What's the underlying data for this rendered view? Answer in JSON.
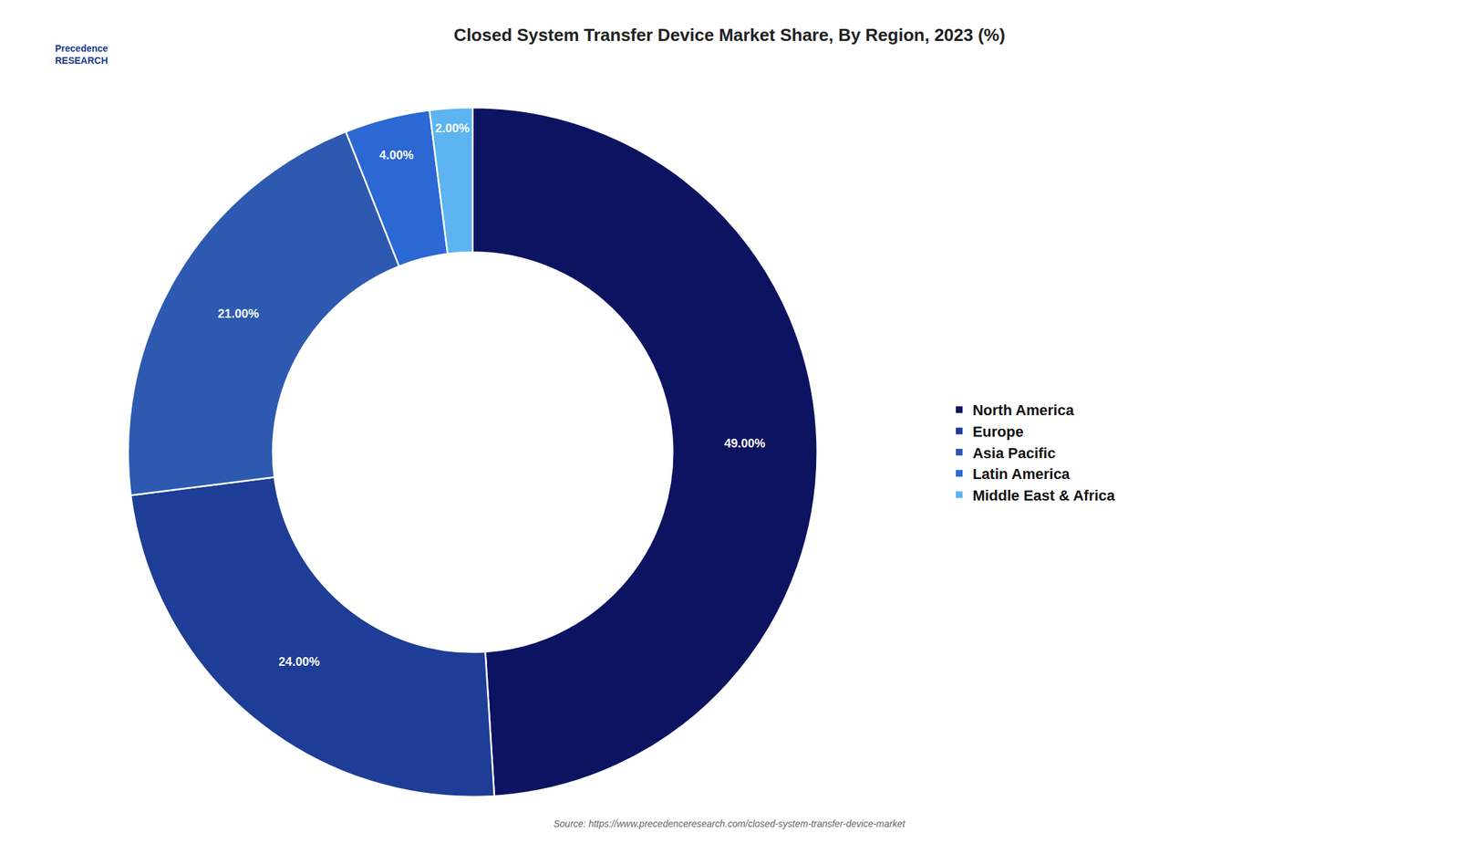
{
  "chart_data": {
    "type": "donut",
    "title": "Closed System Transfer Device Market Share, By Region, 2023 (%)",
    "categories": [
      "North America",
      "Europe",
      "Asia Pacific",
      "Latin America",
      "Middle East & Africa"
    ],
    "values": [
      49.0,
      24.0,
      21.0,
      4.0,
      2.0
    ],
    "value_labels": [
      "49.00%",
      "24.00%",
      "21.00%",
      "4.00%",
      "2.00%"
    ],
    "colors": [
      "#0c1461",
      "#1e3d96",
      "#2d5ab0",
      "#2b68d4",
      "#5cb5f0"
    ],
    "data_labels": true,
    "legend": "right",
    "annotations": [
      "Source: https://www.precedenceresearch.com/closed-system-transfer-device-market",
      "Precedence\nRESEARCH"
    ]
  }
}
